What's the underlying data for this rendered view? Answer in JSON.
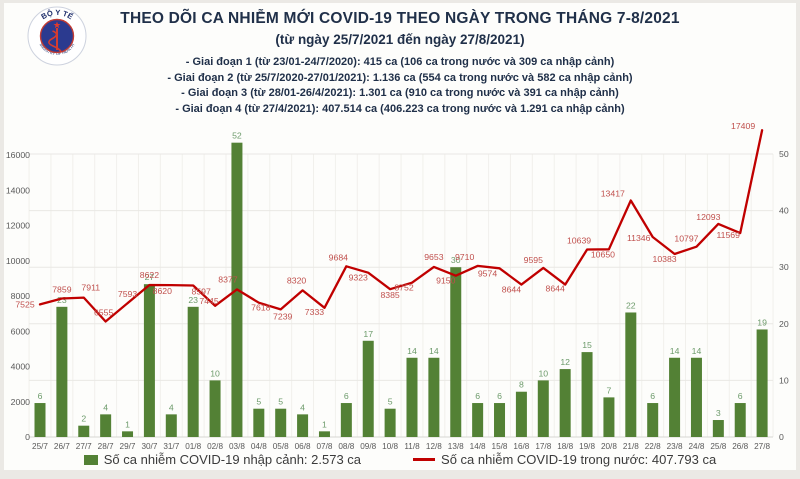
{
  "logo": {
    "top_text": "BỘ Y TẾ",
    "bottom_text": "MINISTRY OF HEALTH"
  },
  "header": {
    "title": "THEO DÕI CA NHIỄM MỚI COVID-19 THEO NGÀY TRONG THÁNG 7-8/2021",
    "subtitle": "(từ ngày 25/7/2021 đến ngày 27/8/2021)",
    "phases": [
      "- Giai đoạn 1 (từ 23/01-24/7/2020): 415 ca (106 ca trong nước và 309 ca nhập cảnh)",
      "- Giai đoạn 2 (từ 25/7/2020-27/01/2021): 1.136 ca (554 ca trong nước và 582 ca nhập cảnh)",
      "- Giai đoạn 3 (từ 28/01-26/4/2021): 1.301 ca (910 ca trong nước và 391 ca nhập cảnh)",
      "- Giai đoạn 4 (từ 27/4/2021): 407.514 ca (406.223 ca trong nước và 1.291 ca nhập cảnh)"
    ]
  },
  "chart_data": {
    "type": "combo-bar-line",
    "categories": [
      "25/7",
      "26/7",
      "27/7",
      "28/7",
      "29/7",
      "30/7",
      "31/7",
      "01/8",
      "02/8",
      "03/8",
      "04/8",
      "05/8",
      "06/8",
      "07/8",
      "08/8",
      "09/8",
      "10/8",
      "11/8",
      "12/8",
      "13/8",
      "14/8",
      "15/8",
      "16/8",
      "17/8",
      "18/8",
      "19/8",
      "20/8",
      "21/8",
      "22/8",
      "23/8",
      "24/8",
      "25/8",
      "26/8",
      "27/8"
    ],
    "series": [
      {
        "name": "Số ca nhiễm COVID-19 nhập cảnh",
        "type": "bar",
        "axis": "right",
        "color": "#538135",
        "label_color": "#6d9b6b",
        "values": [
          6,
          23,
          2,
          4,
          1,
          27,
          4,
          23,
          10,
          52,
          5,
          5,
          4,
          1,
          6,
          17,
          5,
          14,
          14,
          30,
          6,
          6,
          8,
          10,
          12,
          15,
          7,
          22,
          6,
          14,
          14,
          3,
          6,
          19
        ]
      },
      {
        "name": "Số ca nhiễm COVID-19 trong nước",
        "type": "line",
        "axis": "left",
        "color": "#C00000",
        "label_color": "#C0504D",
        "values": [
          7525,
          7859,
          7911,
          6555,
          7593,
          8622,
          8620,
          8597,
          7445,
          8377,
          7618,
          7239,
          8320,
          7333,
          9684,
          9323,
          8385,
          8752,
          9653,
          9150,
          9710,
          9574,
          8644,
          9595,
          8644,
          10639,
          10650,
          13417,
          11346,
          10383,
          10797,
          12093,
          11569,
          17409
        ]
      }
    ],
    "left_axis": {
      "min": 0,
      "max": 16000,
      "ticks": [
        0,
        2000,
        4000,
        6000,
        8000,
        10000,
        12000,
        14000,
        16000
      ]
    },
    "right_axis": {
      "min": 0,
      "max": 50,
      "ticks": [
        0,
        10,
        20,
        30,
        40,
        50
      ]
    },
    "grid": true,
    "legend_position": "bottom"
  },
  "legend": {
    "items": [
      {
        "label": "Số ca nhiễm COVID-19 nhập cảnh: 2.573 ca",
        "swatch": "green-bar"
      },
      {
        "label": "Số ca nhiễm COVID-19 trong nước: 407.793 ca",
        "swatch": "red-line"
      }
    ]
  },
  "colors": {
    "bar": "#538135",
    "line": "#C00000",
    "title_text": "#203049",
    "axis_text": "#595959",
    "grid_line": "#e9e8e4"
  }
}
